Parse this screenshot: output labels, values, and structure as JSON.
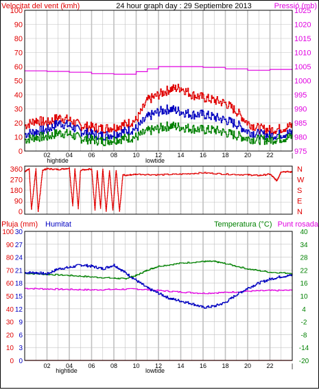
{
  "header": {
    "wind_label": "Velocitat del vent (kmh)",
    "title": "24 hour graph day : 29 Septiembre 2013",
    "pressure_label": "Pressió (mb)"
  },
  "colors": {
    "red": "#e00000",
    "magenta": "#e000e0",
    "green": "#008000",
    "blue": "#0000c0",
    "grid": "#c0c0c0",
    "axis": "#000000"
  },
  "x_axis": {
    "ticks": [
      "02",
      "04",
      "06",
      "08",
      "10",
      "12",
      "14",
      "16",
      "18",
      "20",
      "22"
    ],
    "hightide_label": "hightide",
    "lowtide_label": "lowtide"
  },
  "panel_wind": {
    "left_ticks": [
      "0",
      "10",
      "20",
      "30",
      "40",
      "50",
      "60",
      "70",
      "80",
      "90",
      "100"
    ],
    "right_ticks": [
      "975",
      "980",
      "985",
      "990",
      "995",
      "1000",
      "1005",
      "1010",
      "1015",
      "1020",
      "1025"
    ]
  },
  "panel_dir": {
    "left_ticks": [
      "360",
      "270",
      "180",
      "90",
      "0"
    ],
    "right_ticks": [
      "N",
      "W",
      "S",
      "E",
      "N"
    ]
  },
  "panel_bottom": {
    "rain_label": "Pluja (mm)",
    "humidity_label": "Humitat",
    "temp_label": "Temperatura (°C)",
    "dew_label": "Punt rosada",
    "humidity_ticks": [
      "0",
      "10",
      "20",
      "30",
      "40",
      "50",
      "60",
      "70",
      "80",
      "90",
      "100"
    ],
    "rain_ticks": [
      "0",
      "3",
      "6",
      "9",
      "12",
      "15",
      "18",
      "21",
      "24",
      "27",
      "30"
    ],
    "temp_ticks": [
      "-20",
      "-14",
      "-8",
      "-2",
      "4",
      "10",
      "16",
      "22",
      "28",
      "34",
      "40"
    ]
  },
  "chart_data": [
    {
      "type": "line",
      "x_unit": "hour",
      "xlim": [
        0,
        24
      ],
      "left_axis": "Velocitat del vent (kmh)",
      "left_ylim": [
        0,
        100
      ],
      "right_axis": "Pressió (mb)",
      "right_ylim": [
        975,
        1025
      ],
      "series": [
        {
          "name": "Pressió (mb)",
          "axis": "right",
          "color": "#e000e0",
          "x": [
            0,
            2,
            4,
            6,
            8,
            10,
            11,
            12,
            14,
            16,
            18,
            20,
            22,
            24
          ],
          "y": [
            1003.5,
            1003.3,
            1003.0,
            1002.5,
            1002.3,
            1003.2,
            1004.2,
            1005.0,
            1005.0,
            1004.7,
            1004.2,
            1003.7,
            1004.0,
            1004.2
          ]
        },
        {
          "name": "gust",
          "axis": "left",
          "color": "#e00000",
          "x": [
            0,
            1,
            2,
            3,
            4,
            5,
            6,
            7,
            8,
            9,
            10,
            11,
            12,
            13,
            14,
            15,
            16,
            17,
            18,
            19,
            20,
            21,
            22,
            23,
            24
          ],
          "y": [
            18,
            22,
            20,
            24,
            22,
            18,
            17,
            16,
            17,
            19,
            22,
            36,
            40,
            44,
            45,
            40,
            38,
            36,
            34,
            28,
            20,
            16,
            15,
            16,
            18
          ]
        },
        {
          "name": "average",
          "axis": "left",
          "color": "#0000c0",
          "x": [
            0,
            1,
            2,
            3,
            4,
            5,
            6,
            7,
            8,
            9,
            10,
            11,
            12,
            13,
            14,
            15,
            16,
            17,
            18,
            19,
            20,
            21,
            22,
            23,
            24
          ],
          "y": [
            12,
            14,
            15,
            20,
            18,
            14,
            12,
            11,
            12,
            14,
            16,
            24,
            28,
            30,
            28,
            26,
            26,
            24,
            22,
            19,
            14,
            12,
            11,
            12,
            13
          ]
        },
        {
          "name": "minimum",
          "axis": "left",
          "color": "#008000",
          "x": [
            0,
            1,
            2,
            3,
            4,
            5,
            6,
            7,
            8,
            9,
            10,
            11,
            12,
            13,
            14,
            15,
            16,
            17,
            18,
            19,
            20,
            21,
            22,
            23,
            24
          ],
          "y": [
            8,
            10,
            10,
            13,
            12,
            9,
            8,
            7,
            8,
            9,
            10,
            14,
            16,
            18,
            17,
            16,
            15,
            15,
            13,
            11,
            9,
            8,
            8,
            9,
            10
          ]
        }
      ]
    },
    {
      "type": "line",
      "x_unit": "hour",
      "xlim": [
        0,
        24
      ],
      "ylim": [
        0,
        360
      ],
      "series": [
        {
          "name": "wind direction",
          "color": "#e00000",
          "x": [
            0,
            0.4,
            0.6,
            1.0,
            1.2,
            1.6,
            2.0,
            3.0,
            4.0,
            4.3,
            4.5,
            4.8,
            5.0,
            6.0,
            6.3,
            6.5,
            6.8,
            7.0,
            7.3,
            7.6,
            7.9,
            8.2,
            8.5,
            8.8,
            9.0,
            10.0,
            12.0,
            14.0,
            16.0,
            18.0,
            20.0,
            21.0,
            22.0,
            22.6,
            23.0,
            24.0
          ],
          "y": [
            320,
            340,
            40,
            340,
            20,
            330,
            340,
            335,
            345,
            60,
            340,
            40,
            330,
            340,
            30,
            330,
            40,
            340,
            20,
            330,
            30,
            330,
            20,
            300,
            290,
            300,
            295,
            300,
            310,
            300,
            295,
            290,
            300,
            250,
            320,
            315
          ]
        }
      ]
    },
    {
      "type": "line",
      "x_unit": "hour",
      "xlim": [
        0,
        24
      ],
      "humidity_ylim": [
        0,
        100
      ],
      "rain_ylim": [
        0,
        30
      ],
      "temp_ylim": [
        -20,
        40
      ],
      "series": [
        {
          "name": "Temperatura (°C)",
          "axis": "temp",
          "color": "#008000",
          "x": [
            0,
            2,
            4,
            6,
            8,
            9,
            10,
            11,
            12,
            14,
            16,
            17,
            18,
            20,
            22,
            24
          ],
          "y": [
            20.5,
            20.0,
            19.5,
            18.8,
            18.2,
            18.0,
            19.5,
            22.0,
            23.8,
            25.2,
            26.0,
            26.0,
            25.0,
            22.5,
            21.0,
            20.5
          ]
        },
        {
          "name": "Punt rosada",
          "axis": "temp",
          "color": "#e000e0",
          "x": [
            0,
            2,
            4,
            6,
            8,
            10,
            12,
            14,
            16,
            18,
            20,
            22,
            24
          ],
          "y": [
            13.5,
            13.2,
            13.0,
            12.8,
            13.0,
            13.2,
            12.5,
            11.8,
            11.2,
            11.6,
            12.2,
            12.5,
            12.6
          ]
        },
        {
          "name": "Humitat",
          "axis": "humidity",
          "color": "#0000c0",
          "x": [
            0,
            1,
            2,
            3,
            4,
            5,
            6,
            7,
            8,
            9,
            10,
            11,
            12,
            13,
            14,
            15,
            16,
            17,
            18,
            19,
            20,
            21,
            22,
            23,
            24
          ],
          "y": [
            68,
            68,
            67,
            71,
            72,
            74,
            73,
            71,
            74,
            68,
            62,
            56,
            52,
            48,
            46,
            44,
            41,
            42,
            45,
            51,
            56,
            60,
            63,
            65,
            66
          ]
        },
        {
          "name": "Pluja (mm)",
          "axis": "rain",
          "color": "#e00000",
          "x": [
            0,
            24
          ],
          "y": [
            0,
            0
          ]
        }
      ]
    }
  ]
}
